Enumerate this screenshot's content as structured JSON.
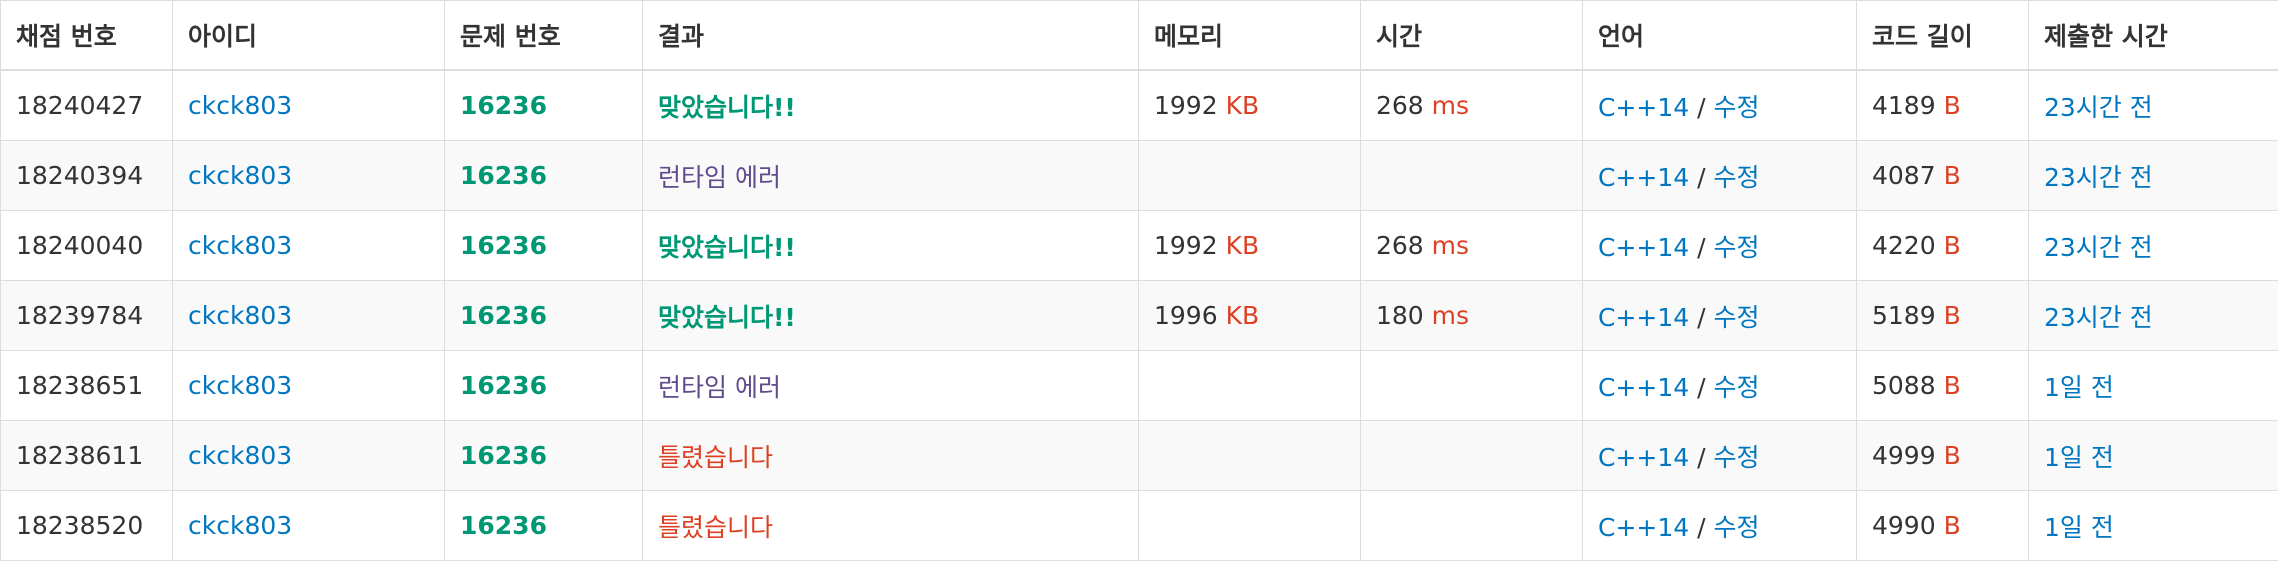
{
  "table": {
    "headers": {
      "submission_id": "채점 번호",
      "user_id": "아이디",
      "problem_id": "문제 번호",
      "result": "결과",
      "memory": "메모리",
      "time": "시간",
      "language": "언어",
      "code_length": "코드 길이",
      "submitted_at": "제출한 시간"
    },
    "rows": [
      {
        "submission_id": "18240427",
        "user_id": "ckck803",
        "problem_id": "16236",
        "result": "맞았습니다!!",
        "result_kind": "accepted",
        "memory": "1992",
        "memory_unit": "KB",
        "time": "268",
        "time_unit": "ms",
        "language": "C++14",
        "lang_sep": "/",
        "edit": "수정",
        "code_length": "4189",
        "code_unit": "B",
        "submitted_at": "23시간 전"
      },
      {
        "submission_id": "18240394",
        "user_id": "ckck803",
        "problem_id": "16236",
        "result": "런타임 에러",
        "result_kind": "runtime-error",
        "memory": "",
        "memory_unit": "",
        "time": "",
        "time_unit": "",
        "language": "C++14",
        "lang_sep": "/",
        "edit": "수정",
        "code_length": "4087",
        "code_unit": "B",
        "submitted_at": "23시간 전"
      },
      {
        "submission_id": "18240040",
        "user_id": "ckck803",
        "problem_id": "16236",
        "result": "맞았습니다!!",
        "result_kind": "accepted",
        "memory": "1992",
        "memory_unit": "KB",
        "time": "268",
        "time_unit": "ms",
        "language": "C++14",
        "lang_sep": "/",
        "edit": "수정",
        "code_length": "4220",
        "code_unit": "B",
        "submitted_at": "23시간 전"
      },
      {
        "submission_id": "18239784",
        "user_id": "ckck803",
        "problem_id": "16236",
        "result": "맞았습니다!!",
        "result_kind": "accepted",
        "memory": "1996",
        "memory_unit": "KB",
        "time": "180",
        "time_unit": "ms",
        "language": "C++14",
        "lang_sep": "/",
        "edit": "수정",
        "code_length": "5189",
        "code_unit": "B",
        "submitted_at": "23시간 전"
      },
      {
        "submission_id": "18238651",
        "user_id": "ckck803",
        "problem_id": "16236",
        "result": "런타임 에러",
        "result_kind": "runtime-error",
        "memory": "",
        "memory_unit": "",
        "time": "",
        "time_unit": "",
        "language": "C++14",
        "lang_sep": "/",
        "edit": "수정",
        "code_length": "5088",
        "code_unit": "B",
        "submitted_at": "1일 전"
      },
      {
        "submission_id": "18238611",
        "user_id": "ckck803",
        "problem_id": "16236",
        "result": "틀렸습니다",
        "result_kind": "wrong-answer",
        "memory": "",
        "memory_unit": "",
        "time": "",
        "time_unit": "",
        "language": "C++14",
        "lang_sep": "/",
        "edit": "수정",
        "code_length": "4999",
        "code_unit": "B",
        "submitted_at": "1일 전"
      },
      {
        "submission_id": "18238520",
        "user_id": "ckck803",
        "problem_id": "16236",
        "result": "틀렸습니다",
        "result_kind": "wrong-answer",
        "memory": "",
        "memory_unit": "",
        "time": "",
        "time_unit": "",
        "language": "C++14",
        "lang_sep": "/",
        "edit": "수정",
        "code_length": "4990",
        "code_unit": "B",
        "submitted_at": "1일 전"
      }
    ]
  },
  "colors": {
    "link": "#0076c0",
    "accepted": "#009874",
    "runtime_error": "#5f4b8b",
    "wrong_answer": "#dd4124",
    "unit": "#dd4124",
    "border": "#dddddd",
    "stripe": "#f9f9f9"
  }
}
